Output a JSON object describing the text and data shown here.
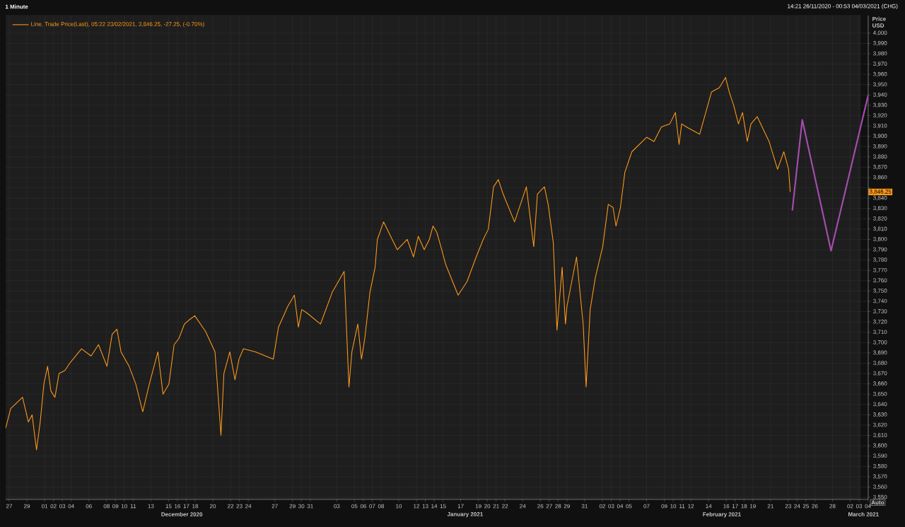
{
  "chart_data": {
    "type": "line",
    "title": "1 Minute",
    "subtitle": "14:21 26/11/2020 - 00:53 04/03/2021 (CHG)",
    "ylabel": "Price USD",
    "legend": "top left",
    "grid": true,
    "xlim": [
      "2020-11-26T14:21",
      "2021-03-04T00:53"
    ],
    "ylim": [
      3548,
      4017
    ],
    "xticks": [
      {
        "value": "2020-11-27",
        "label": "27"
      },
      {
        "value": "2020-11-29",
        "label": "29"
      },
      {
        "value": "2020-12-01",
        "label": "01"
      },
      {
        "value": "2020-12-02",
        "label": "02"
      },
      {
        "value": "2020-12-03",
        "label": "03"
      },
      {
        "value": "2020-12-04",
        "label": "04"
      },
      {
        "value": "2020-12-06",
        "label": "06"
      },
      {
        "value": "2020-12-08",
        "label": "08"
      },
      {
        "value": "2020-12-09",
        "label": "09"
      },
      {
        "value": "2020-12-10",
        "label": "10"
      },
      {
        "value": "2020-12-11",
        "label": "11"
      },
      {
        "value": "2020-12-13",
        "label": "13"
      },
      {
        "value": "2020-12-15",
        "label": "15"
      },
      {
        "value": "2020-12-16",
        "label": "16"
      },
      {
        "value": "2020-12-17",
        "label": "17"
      },
      {
        "value": "2020-12-18",
        "label": "18"
      },
      {
        "value": "2020-12-20",
        "label": "20"
      },
      {
        "value": "2020-12-22",
        "label": "22"
      },
      {
        "value": "2020-12-23",
        "label": "23"
      },
      {
        "value": "2020-12-24",
        "label": "24"
      },
      {
        "value": "2020-12-27",
        "label": "27"
      },
      {
        "value": "2020-12-29",
        "label": "29"
      },
      {
        "value": "2020-12-30",
        "label": "30"
      },
      {
        "value": "2020-12-31",
        "label": "31"
      },
      {
        "value": "2021-01-03",
        "label": "03"
      },
      {
        "value": "2021-01-05",
        "label": "05"
      },
      {
        "value": "2021-01-06",
        "label": "06"
      },
      {
        "value": "2021-01-07",
        "label": "07"
      },
      {
        "value": "2021-01-08",
        "label": "08"
      },
      {
        "value": "2021-01-10",
        "label": "10"
      },
      {
        "value": "2021-01-12",
        "label": "12"
      },
      {
        "value": "2021-01-13",
        "label": "13"
      },
      {
        "value": "2021-01-14",
        "label": "14"
      },
      {
        "value": "2021-01-15",
        "label": "15"
      },
      {
        "value": "2021-01-17",
        "label": "17"
      },
      {
        "value": "2021-01-19",
        "label": "19"
      },
      {
        "value": "2021-01-20",
        "label": "20"
      },
      {
        "value": "2021-01-21",
        "label": "21"
      },
      {
        "value": "2021-01-22",
        "label": "22"
      },
      {
        "value": "2021-01-24",
        "label": "24"
      },
      {
        "value": "2021-01-26",
        "label": "26"
      },
      {
        "value": "2021-01-27",
        "label": "27"
      },
      {
        "value": "2021-01-28",
        "label": "28"
      },
      {
        "value": "2021-01-29",
        "label": "29"
      },
      {
        "value": "2021-01-31",
        "label": "31"
      },
      {
        "value": "2021-02-02",
        "label": "02"
      },
      {
        "value": "2021-02-03",
        "label": "03"
      },
      {
        "value": "2021-02-04",
        "label": "04"
      },
      {
        "value": "2021-02-05",
        "label": "05"
      },
      {
        "value": "2021-02-07",
        "label": "07"
      },
      {
        "value": "2021-02-09",
        "label": "09"
      },
      {
        "value": "2021-02-10",
        "label": "10"
      },
      {
        "value": "2021-02-11",
        "label": "11"
      },
      {
        "value": "2021-02-12",
        "label": "12"
      },
      {
        "value": "2021-02-14",
        "label": "14"
      },
      {
        "value": "2021-02-16",
        "label": "16"
      },
      {
        "value": "2021-02-17",
        "label": "17"
      },
      {
        "value": "2021-02-18",
        "label": "18"
      },
      {
        "value": "2021-02-19",
        "label": "19"
      },
      {
        "value": "2021-02-21",
        "label": "21"
      },
      {
        "value": "2021-02-23",
        "label": "23"
      },
      {
        "value": "2021-02-24",
        "label": "24"
      },
      {
        "value": "2021-02-25",
        "label": "25"
      },
      {
        "value": "2021-02-26",
        "label": "26"
      },
      {
        "value": "2021-02-28",
        "label": "28"
      },
      {
        "value": "2021-03-02",
        "label": "02"
      },
      {
        "value": "2021-03-03",
        "label": "03"
      },
      {
        "value": "2021-03-04",
        "label": "04"
      }
    ],
    "yticks": [
      {
        "value": 3550,
        "label": "3,550"
      },
      {
        "value": 3560,
        "label": "3,560"
      },
      {
        "value": 3570,
        "label": "3,570"
      },
      {
        "value": 3580,
        "label": "3,580"
      },
      {
        "value": 3590,
        "label": "3,590"
      },
      {
        "value": 3600,
        "label": "3,600"
      },
      {
        "value": 3610,
        "label": "3,610"
      },
      {
        "value": 3620,
        "label": "3,620"
      },
      {
        "value": 3630,
        "label": "3,630"
      },
      {
        "value": 3640,
        "label": "3,640"
      },
      {
        "value": 3650,
        "label": "3,650"
      },
      {
        "value": 3660,
        "label": "3,660"
      },
      {
        "value": 3670,
        "label": "3,670"
      },
      {
        "value": 3680,
        "label": "3,680"
      },
      {
        "value": 3690,
        "label": "3,690"
      },
      {
        "value": 3700,
        "label": "3,700"
      },
      {
        "value": 3710,
        "label": "3,710"
      },
      {
        "value": 3720,
        "label": "3,720"
      },
      {
        "value": 3730,
        "label": "3,730"
      },
      {
        "value": 3740,
        "label": "3,740"
      },
      {
        "value": 3750,
        "label": "3,750"
      },
      {
        "value": 3760,
        "label": "3,760"
      },
      {
        "value": 3770,
        "label": "3,770"
      },
      {
        "value": 3780,
        "label": "3,780"
      },
      {
        "value": 3790,
        "label": "3,790"
      },
      {
        "value": 3800,
        "label": "3,800"
      },
      {
        "value": 3810,
        "label": "3,810"
      },
      {
        "value": 3820,
        "label": "3,820"
      },
      {
        "value": 3830,
        "label": "3,830"
      },
      {
        "value": 3840,
        "label": "3,840"
      },
      {
        "value": 3850,
        "label": null
      },
      {
        "value": 3860,
        "label": "3,860"
      },
      {
        "value": 3870,
        "label": "3,870"
      },
      {
        "value": 3880,
        "label": "3,880"
      },
      {
        "value": 3890,
        "label": "3,890"
      },
      {
        "value": 3900,
        "label": "3,900"
      },
      {
        "value": 3910,
        "label": "3,910"
      },
      {
        "value": 3920,
        "label": "3,920"
      },
      {
        "value": 3930,
        "label": "3,930"
      },
      {
        "value": 3940,
        "label": "3,940"
      },
      {
        "value": 3950,
        "label": "3,950"
      },
      {
        "value": 3960,
        "label": "3,960"
      },
      {
        "value": 3970,
        "label": "3,970"
      },
      {
        "value": 3980,
        "label": "3,980"
      },
      {
        "value": 3990,
        "label": "3,990"
      },
      {
        "value": 4000,
        "label": "4,000"
      }
    ],
    "series": [
      {
        "name": "Line, Trade Price(Last), 05:22 23/02/2021, 3,846.25, -27.25, (-0.70%)",
        "color": "#ff9a1a",
        "x": [
          "2020-11-26T14:21",
          "2020-11-27T04:00",
          "2020-11-28T12:00",
          "2020-11-29T04:00",
          "2020-11-29T14:00",
          "2020-11-30T02:00",
          "2020-11-30T12:00",
          "2020-11-30T22:00",
          "2020-12-01T08:00",
          "2020-12-01T17:00",
          "2020-12-02T04:00",
          "2020-12-02T15:00",
          "2020-12-03T07:00",
          "2020-12-03T20:00",
          "2020-12-05T04:00",
          "2020-12-06T06:00",
          "2020-12-07T02:00",
          "2020-12-08T01:00",
          "2020-12-08T15:00",
          "2020-12-09T04:00",
          "2020-12-09T15:00",
          "2020-12-10T13:00",
          "2020-12-11T07:00",
          "2020-12-12T02:00",
          "2020-12-12T20:00",
          "2020-12-13T19:00",
          "2020-12-14T09:00",
          "2020-12-15T01:00",
          "2020-12-15T15:00",
          "2020-12-16T04:00",
          "2020-12-16T19:00",
          "2020-12-17T08:00",
          "2020-12-17T23:00",
          "2020-12-19T04:00",
          "2020-12-20T06:00",
          "2020-12-20T22:00",
          "2020-12-21T06:00",
          "2020-12-21T22:00",
          "2020-12-22T12:00",
          "2020-12-22T23:00",
          "2020-12-23T11:00",
          "2020-12-24T20:00",
          "2020-12-26T20:00",
          "2020-12-27T10:00",
          "2020-12-28T11:00",
          "2020-12-29T05:00",
          "2020-12-29T16:00",
          "2020-12-30T01:00",
          "2020-12-30T14:00",
          "2021-01-01T04:00",
          "2021-01-02T12:00",
          "2021-01-03T20:00",
          "2021-01-04T09:00",
          "2021-01-04T17:00",
          "2021-01-05T09:00",
          "2021-01-05T19:00",
          "2021-01-06T04:00",
          "2021-01-06T18:00",
          "2021-01-07T08:00",
          "2021-01-07T14:00",
          "2021-01-08T07:00",
          "2021-01-09T20:00",
          "2021-01-10T23:00",
          "2021-01-11T16:00",
          "2021-01-12T05:00",
          "2021-01-12T21:00",
          "2021-01-13T11:00",
          "2021-01-13T21:00",
          "2021-01-14T07:00",
          "2021-01-14T16:00",
          "2021-01-15T07:00",
          "2021-01-16T17:00",
          "2021-01-17T17:00",
          "2021-01-18T18:00",
          "2021-01-19T13:00",
          "2021-01-20T03:00",
          "2021-01-20T17:00",
          "2021-01-21T06:00",
          "2021-01-21T19:00",
          "2021-01-23T02:00",
          "2021-01-24T10:00",
          "2021-01-25T06:00",
          "2021-01-25T16:00",
          "2021-01-26T11:00",
          "2021-01-26T21:00",
          "2021-01-27T11:00",
          "2021-01-27T21:00",
          "2021-01-28T11:00",
          "2021-01-28T20:00",
          "2021-01-29T00:00",
          "2021-01-30T02:00",
          "2021-01-30T20:00",
          "2021-01-31T04:00",
          "2021-01-31T15:00",
          "2021-02-01T05:00",
          "2021-02-02T01:00",
          "2021-02-02T16:00",
          "2021-02-03T05:00",
          "2021-02-03T13:00",
          "2021-02-04T01:00",
          "2021-02-04T13:00",
          "2021-02-05T08:00",
          "2021-02-07T00:00",
          "2021-02-07T20:00",
          "2021-02-08T16:00",
          "2021-02-09T15:00",
          "2021-02-10T06:00",
          "2021-02-10T16:00",
          "2021-02-10T23:00",
          "2021-02-11T12:00",
          "2021-02-13T00:00",
          "2021-02-14T08:00",
          "2021-02-15T05:00",
          "2021-02-15T22:00",
          "2021-02-16T08:00",
          "2021-02-16T20:00",
          "2021-02-17T09:00",
          "2021-02-17T20:00",
          "2021-02-18T09:00",
          "2021-02-18T19:00",
          "2021-02-19T12:00",
          "2021-02-20T20:00",
          "2021-02-21T19:00",
          "2021-02-22T12:00",
          "2021-02-23T01:00",
          "2021-02-23T05:22"
        ],
        "values": [
          3617,
          3636,
          3647,
          3623,
          3630,
          3596,
          3623,
          3660,
          3677,
          3653,
          3647,
          3670,
          3673,
          3680,
          3694,
          3687,
          3698,
          3677,
          3708,
          3713,
          3691,
          3677,
          3660,
          3633,
          3660,
          3691,
          3650,
          3660,
          3698,
          3704,
          3718,
          3722,
          3726,
          3711,
          3691,
          3610,
          3670,
          3691,
          3664,
          3684,
          3694,
          3691,
          3684,
          3715,
          3735,
          3746,
          3715,
          3732,
          3729,
          3718,
          3749,
          3769,
          3657,
          3691,
          3718,
          3684,
          3704,
          3749,
          3773,
          3800,
          3817,
          3790,
          3800,
          3783,
          3803,
          3790,
          3800,
          3813,
          3807,
          3796,
          3776,
          3746,
          3759,
          3783,
          3800,
          3810,
          3851,
          3858,
          3844,
          3817,
          3851,
          3793,
          3844,
          3851,
          3834,
          3797,
          3712,
          3773,
          3718,
          3735,
          3783,
          3718,
          3657,
          3732,
          3763,
          3793,
          3834,
          3831,
          3813,
          3831,
          3865,
          3885,
          3899,
          3895,
          3909,
          3912,
          3923,
          3892,
          3912,
          3909,
          3902,
          3943,
          3947,
          3957,
          3943,
          3930,
          3912,
          3923,
          3895,
          3912,
          3919,
          3895,
          3868,
          3885,
          3868,
          3846
        ]
      },
      {
        "color": "#a64db0",
        "x": [
          "2021-02-23T11:00",
          "2021-02-24T14:00",
          "2021-02-27T20:00",
          "2021-03-04T00:53"
        ],
        "values": [
          3828,
          3916,
          3789,
          3940
        ]
      }
    ],
    "annotations": [
      "3,846.25",
      "December 2020",
      "January 2021",
      "February 2021",
      "March 2021",
      "Auto"
    ]
  }
}
